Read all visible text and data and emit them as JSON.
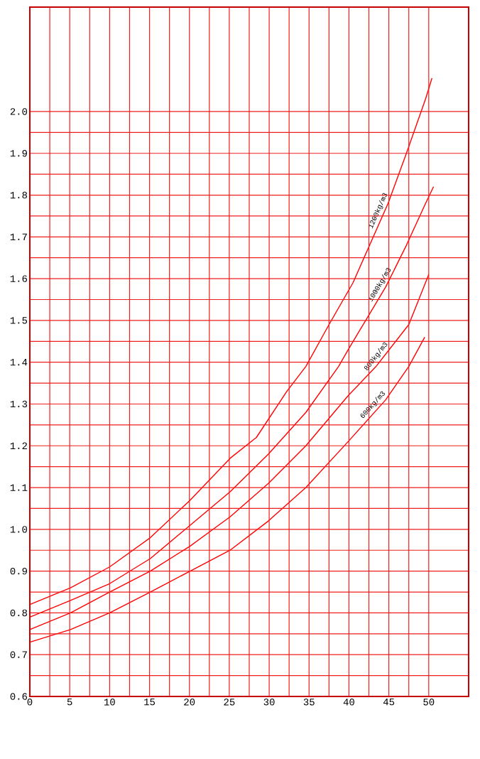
{
  "chart_data": {
    "type": "line",
    "xlim": [
      0,
      55
    ],
    "ylim": [
      0.6,
      2.25
    ],
    "xticks": [
      0,
      5,
      10,
      15,
      20,
      25,
      30,
      35,
      40,
      45,
      50
    ],
    "yticks": [
      0.6,
      0.7,
      0.8,
      0.9,
      {
        "value": 1.0,
        "label": "1.0"
      },
      1.1,
      1.2,
      1.3,
      1.4,
      1.5,
      1.6,
      1.7,
      1.8,
      1.9,
      {
        "value": 2.0,
        "label": "2.0"
      }
    ],
    "grid": true,
    "marker": "none",
    "line_style": "solid",
    "series": [
      {
        "name": "1200kg/m3",
        "color": "#ff0000",
        "x": [
          0,
          5.1,
          10,
          15.1,
          20.1,
          25.1,
          28.4,
          32.2,
          34.6,
          37.5,
          40.5,
          44.9,
          47.2,
          49.6,
          50.4
        ],
        "values": [
          0.82,
          0.86,
          0.91,
          0.98,
          1.07,
          1.17,
          1.22,
          1.33,
          1.39,
          1.49,
          1.59,
          1.78,
          1.9,
          2.03,
          2.08
        ]
      },
      {
        "name": "1000kg/m3",
        "color": "#ff0000",
        "x": [
          0,
          5.1,
          10,
          15.1,
          20.1,
          25.1,
          29.9,
          34.6,
          38.7,
          39.9,
          44.6,
          47.2,
          49.6,
          50.6
        ],
        "values": [
          0.79,
          0.83,
          0.87,
          0.93,
          1.01,
          1.09,
          1.18,
          1.28,
          1.39,
          1.43,
          1.58,
          1.68,
          1.78,
          1.82
        ]
      },
      {
        "name": "800kg/m3",
        "color": "#ff0000",
        "x": [
          0,
          5.1,
          10,
          15.1,
          20.1,
          25.1,
          29.9,
          34.6,
          39.9,
          43.4,
          47.5,
          50.0
        ],
        "values": [
          0.76,
          0.8,
          0.85,
          0.9,
          0.96,
          1.03,
          1.11,
          1.2,
          1.32,
          1.39,
          1.49,
          1.61
        ]
      },
      {
        "name": "600kg/m3",
        "color": "#ff0000",
        "x": [
          0,
          5.1,
          10,
          15.1,
          20.1,
          25.1,
          29.9,
          34.6,
          39.9,
          44.6,
          47.5,
          49.5
        ],
        "values": [
          0.73,
          0.76,
          0.8,
          0.85,
          0.9,
          0.95,
          1.02,
          1.1,
          1.21,
          1.31,
          1.39,
          1.46
        ]
      }
    ]
  }
}
